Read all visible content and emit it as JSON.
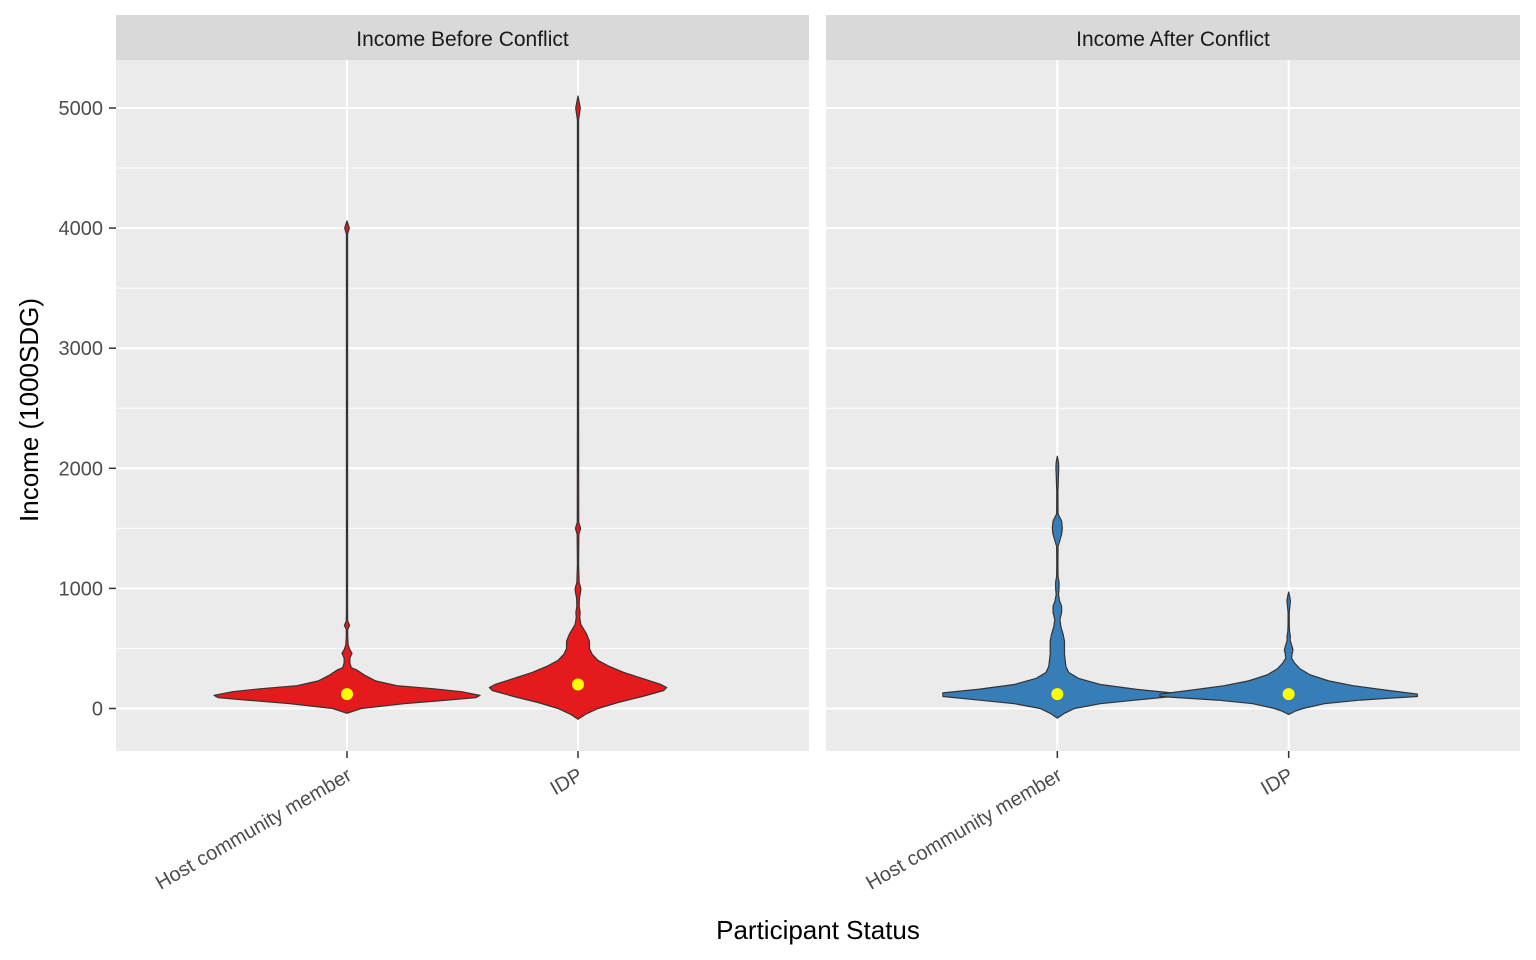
{
  "chart_data": {
    "type": "violin",
    "xlabel": "Participant Status",
    "ylabel": "Income (1000SDG)",
    "categories": [
      "Host community member",
      "IDP"
    ],
    "ylim": [
      -350,
      5400
    ],
    "yticks": [
      0,
      1000,
      2000,
      3000,
      4000,
      5000
    ],
    "grid": true,
    "legend": "none",
    "panels": [
      {
        "strip": "Income Before Conflict",
        "fill": "#e41a1c",
        "violins": [
          {
            "category": "Host community member",
            "mean": 120,
            "min": -40,
            "max": 4060,
            "profile": [
              [
                -40,
                0
              ],
              [
                0,
                0.1
              ],
              [
                40,
                0.4
              ],
              [
                70,
                0.7
              ],
              [
                90,
                0.9
              ],
              [
                110,
                0.93
              ],
              [
                140,
                0.8
              ],
              [
                165,
                0.6
              ],
              [
                190,
                0.35
              ],
              [
                230,
                0.2
              ],
              [
                280,
                0.12
              ],
              [
                320,
                0.07
              ],
              [
                340,
                0.03
              ],
              [
                380,
                0.02
              ],
              [
                420,
                0.02
              ],
              [
                460,
                0.035
              ],
              [
                490,
                0.02
              ],
              [
                530,
                0.008
              ],
              [
                600,
                0.005
              ],
              [
                660,
                0.005
              ],
              [
                690,
                0.018
              ],
              [
                730,
                0.005
              ],
              [
                800,
                0.004
              ],
              [
                1500,
                0.004
              ],
              [
                3000,
                0.004
              ],
              [
                3950,
                0.004
              ],
              [
                4000,
                0.016
              ],
              [
                4060,
                0
              ]
            ]
          },
          {
            "category": "IDP",
            "mean": 200,
            "min": -90,
            "max": 5100,
            "profile": [
              [
                -90,
                0
              ],
              [
                -50,
                0.05
              ],
              [
                0,
                0.14
              ],
              [
                50,
                0.28
              ],
              [
                100,
                0.45
              ],
              [
                150,
                0.6
              ],
              [
                175,
                0.62
              ],
              [
                200,
                0.58
              ],
              [
                250,
                0.45
              ],
              [
                300,
                0.32
              ],
              [
                350,
                0.22
              ],
              [
                400,
                0.14
              ],
              [
                450,
                0.1
              ],
              [
                500,
                0.08
              ],
              [
                560,
                0.08
              ],
              [
                620,
                0.06
              ],
              [
                700,
                0.02
              ],
              [
                760,
                0.012
              ],
              [
                800,
                0.015
              ],
              [
                850,
                0.008
              ],
              [
                920,
                0.01
              ],
              [
                970,
                0.018
              ],
              [
                1000,
                0.02
              ],
              [
                1050,
                0.008
              ],
              [
                1200,
                0.004
              ],
              [
                1450,
                0.006
              ],
              [
                1500,
                0.018
              ],
              [
                1550,
                0.005
              ],
              [
                2500,
                0.004
              ],
              [
                4900,
                0.004
              ],
              [
                5000,
                0.016
              ],
              [
                5100,
                0
              ]
            ]
          }
        ]
      },
      {
        "strip": "Income After Conflict",
        "fill": "#377eb8",
        "violins": [
          {
            "category": "Host community member",
            "mean": 120,
            "min": -80,
            "max": 2100,
            "profile": [
              [
                -80,
                0
              ],
              [
                -40,
                0.05
              ],
              [
                0,
                0.12
              ],
              [
                40,
                0.3
              ],
              [
                70,
                0.55
              ],
              [
                100,
                0.8
              ],
              [
                130,
                0.8
              ],
              [
                160,
                0.55
              ],
              [
                200,
                0.3
              ],
              [
                250,
                0.15
              ],
              [
                300,
                0.08
              ],
              [
                350,
                0.06
              ],
              [
                400,
                0.055
              ],
              [
                450,
                0.05
              ],
              [
                500,
                0.05
              ],
              [
                560,
                0.05
              ],
              [
                620,
                0.04
              ],
              [
                680,
                0.025
              ],
              [
                740,
                0.018
              ],
              [
                800,
                0.03
              ],
              [
                850,
                0.03
              ],
              [
                900,
                0.015
              ],
              [
                950,
                0.008
              ],
              [
                1000,
                0.012
              ],
              [
                1050,
                0.012
              ],
              [
                1100,
                0.005
              ],
              [
                1200,
                0.004
              ],
              [
                1350,
                0.005
              ],
              [
                1450,
                0.03
              ],
              [
                1500,
                0.035
              ],
              [
                1560,
                0.03
              ],
              [
                1620,
                0.005
              ],
              [
                1800,
                0.004
              ],
              [
                1950,
                0.008
              ],
              [
                2000,
                0.01
              ],
              [
                2050,
                0.008
              ],
              [
                2100,
                0
              ]
            ]
          },
          {
            "category": "IDP",
            "mean": 120,
            "min": -50,
            "max": 970,
            "profile": [
              [
                -50,
                0
              ],
              [
                -20,
                0.05
              ],
              [
                0,
                0.1
              ],
              [
                40,
                0.25
              ],
              [
                70,
                0.5
              ],
              [
                100,
                0.9
              ],
              [
                120,
                0.9
              ],
              [
                150,
                0.7
              ],
              [
                190,
                0.45
              ],
              [
                230,
                0.28
              ],
              [
                280,
                0.15
              ],
              [
                330,
                0.08
              ],
              [
                380,
                0.04
              ],
              [
                420,
                0.02
              ],
              [
                460,
                0.025
              ],
              [
                490,
                0.03
              ],
              [
                530,
                0.02
              ],
              [
                570,
                0.01
              ],
              [
                600,
                0.012
              ],
              [
                640,
                0.006
              ],
              [
                700,
                0.004
              ],
              [
                800,
                0.004
              ],
              [
                870,
                0.01
              ],
              [
                900,
                0.012
              ],
              [
                940,
                0.006
              ],
              [
                970,
                0
              ]
            ]
          }
        ]
      }
    ]
  }
}
